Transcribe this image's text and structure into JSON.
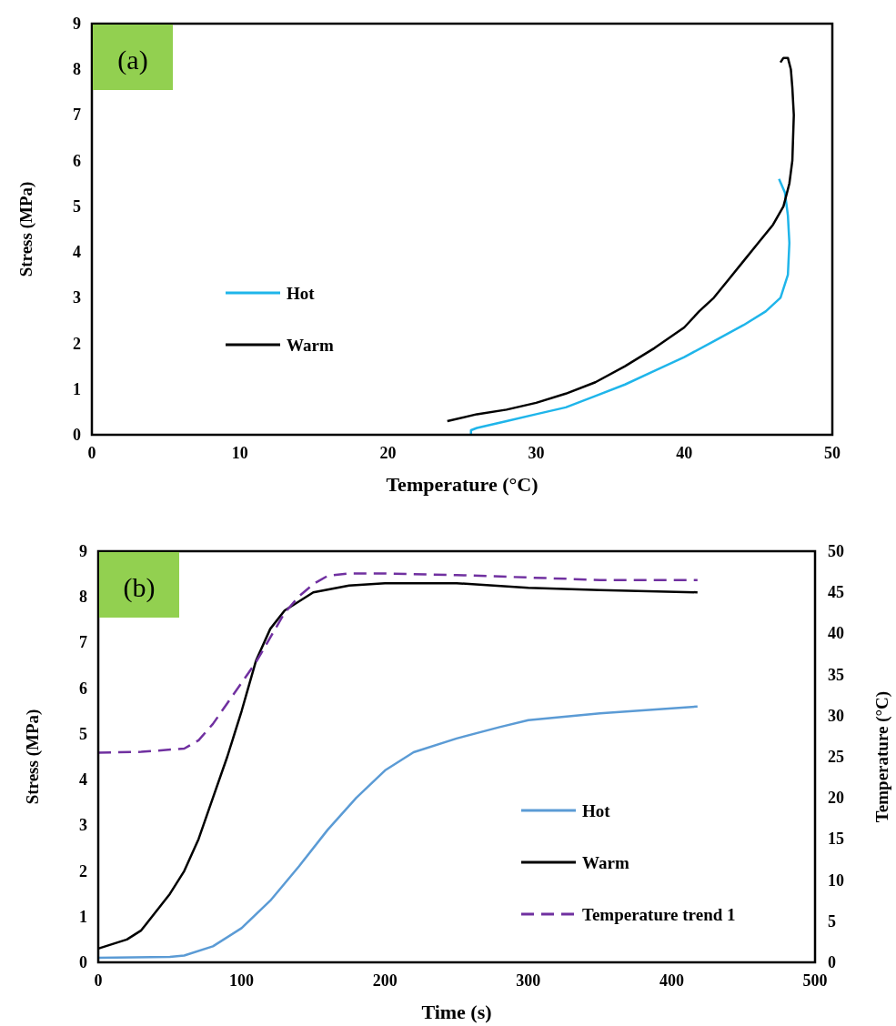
{
  "chart_data": [
    {
      "type": "line",
      "xlabel": "Temperature (°C)",
      "ylabel": "Stress (MPa)",
      "annotations": [
        "(a)"
      ],
      "xlim": [
        0,
        50
      ],
      "xticks": [
        0,
        10,
        20,
        30,
        40,
        50
      ],
      "ylim": [
        0,
        9
      ],
      "yticks": [
        0,
        1,
        2,
        3,
        4,
        5,
        6,
        7,
        8,
        9
      ],
      "legend": "left",
      "grid": false,
      "series": [
        {
          "name": "Hot",
          "color": "#1fb5ea",
          "x": [
            25.6,
            25.6,
            26,
            28,
            30,
            32,
            34,
            36,
            38,
            40,
            42,
            44,
            45.5,
            46.5,
            47,
            47.1,
            47,
            46.8,
            46.4
          ],
          "values": [
            0,
            0.1,
            0.15,
            0.3,
            0.45,
            0.6,
            0.85,
            1.1,
            1.4,
            1.7,
            2.05,
            2.4,
            2.7,
            3.0,
            3.5,
            4.2,
            4.8,
            5.3,
            5.6
          ]
        },
        {
          "name": "Warm",
          "color": "#000000",
          "x": [
            24,
            26,
            28,
            30,
            32,
            34,
            36,
            38,
            40,
            41,
            42,
            43,
            44,
            45,
            46,
            46.7,
            47.1,
            47.3,
            47.4,
            47.3,
            47.2,
            47,
            46.7,
            46.5
          ],
          "values": [
            0.3,
            0.45,
            0.55,
            0.7,
            0.9,
            1.15,
            1.5,
            1.9,
            2.35,
            2.7,
            3.0,
            3.4,
            3.8,
            4.2,
            4.6,
            5.0,
            5.5,
            6,
            7,
            7.6,
            8.0,
            8.25,
            8.25,
            8.15
          ]
        }
      ]
    },
    {
      "type": "line",
      "xlabel": "Time (s)",
      "ylabel": "Stress (MPa)",
      "y2label": "Temperature (°C)",
      "annotations": [
        "(b)"
      ],
      "xlim": [
        0,
        500
      ],
      "xticks": [
        0,
        100,
        200,
        300,
        400,
        500
      ],
      "ylim": [
        0,
        9
      ],
      "yticks": [
        0,
        1,
        2,
        3,
        4,
        5,
        6,
        7,
        8,
        9
      ],
      "y2lim": [
        0,
        50
      ],
      "y2ticks": [
        0,
        5,
        10,
        15,
        20,
        25,
        30,
        35,
        40,
        45,
        50
      ],
      "legend": "bottom right",
      "grid": false,
      "series": [
        {
          "name": "Hot",
          "color": "#5b9bd5",
          "x": [
            0,
            50,
            60,
            80,
            100,
            120,
            140,
            160,
            180,
            200,
            220,
            250,
            280,
            300,
            350,
            418
          ],
          "values": [
            0.1,
            0.12,
            0.15,
            0.35,
            0.75,
            1.35,
            2.1,
            2.9,
            3.6,
            4.2,
            4.6,
            4.9,
            5.15,
            5.3,
            5.45,
            5.6
          ]
        },
        {
          "name": "Warm",
          "color": "#000000",
          "x": [
            0,
            20,
            30,
            50,
            60,
            70,
            80,
            90,
            100,
            110,
            120,
            130,
            150,
            175,
            200,
            250,
            300,
            350,
            418
          ],
          "values": [
            0.3,
            0.5,
            0.7,
            1.5,
            2.0,
            2.7,
            3.6,
            4.5,
            5.5,
            6.6,
            7.3,
            7.7,
            8.1,
            8.25,
            8.3,
            8.3,
            8.2,
            8.15,
            8.1
          ]
        },
        {
          "name": "Temperature trend 1",
          "color": "#7030a0",
          "axis": "y2",
          "line_style": "dashed",
          "x": [
            0,
            30,
            60,
            70,
            80,
            90,
            100,
            110,
            120,
            130,
            140,
            150,
            160,
            175,
            200,
            250,
            300,
            350,
            418
          ],
          "values": [
            25.5,
            25.6,
            26,
            27,
            29,
            31.5,
            34,
            36.5,
            39.5,
            42.5,
            44.5,
            46,
            47,
            47.3,
            47.3,
            47.1,
            46.8,
            46.5,
            46.5
          ]
        }
      ]
    }
  ]
}
